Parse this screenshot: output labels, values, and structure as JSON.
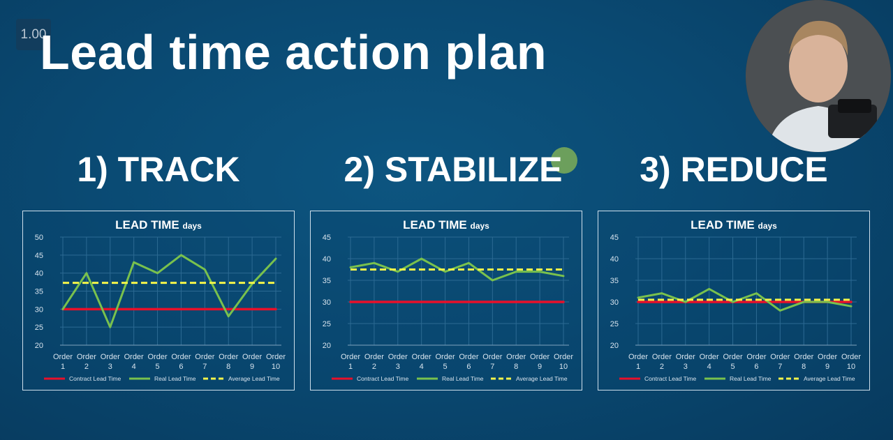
{
  "playback": {
    "speed": "1.00"
  },
  "title": "Lead time action plan",
  "steps": [
    {
      "heading": "1) TRACK"
    },
    {
      "heading": "2) STABILIZE"
    },
    {
      "heading": "3) REDUCE"
    }
  ],
  "colors": {
    "contract": "#e8102a",
    "real": "#79c14d",
    "average": "#f4f44a",
    "grid": "#2c6a93",
    "axis_text": "#d8e4ee"
  },
  "chart_data": [
    {
      "type": "line",
      "title": "LEAD TIME",
      "title_unit": "days",
      "categories": [
        "Order 1",
        "Order 2",
        "Order 3",
        "Order 4",
        "Order 5",
        "Order 6",
        "Order 7",
        "Order 8",
        "Order 9",
        "Order 10"
      ],
      "ylim": [
        20,
        50
      ],
      "yticks": [
        20,
        25,
        30,
        35,
        40,
        45,
        50
      ],
      "grid": true,
      "legend_position": "bottom",
      "series": [
        {
          "name": "Contract Lead Time",
          "values": [
            30,
            30,
            30,
            30,
            30,
            30,
            30,
            30,
            30,
            30
          ],
          "style": "solid"
        },
        {
          "name": "Real Lead Time",
          "values": [
            30,
            40,
            25,
            43,
            40,
            45,
            41,
            28,
            37,
            44
          ],
          "style": "solid"
        },
        {
          "name": "Average Lead Time",
          "values": [
            37.3,
            37.3,
            37.3,
            37.3,
            37.3,
            37.3,
            37.3,
            37.3,
            37.3,
            37.3
          ],
          "style": "dashed"
        }
      ]
    },
    {
      "type": "line",
      "title": "LEAD TIME",
      "title_unit": "days",
      "categories": [
        "Order 1",
        "Order 2",
        "Order 3",
        "Order 4",
        "Order 5",
        "Order 6",
        "Order 7",
        "Order 8",
        "Order 9",
        "Order 10"
      ],
      "ylim": [
        20,
        45
      ],
      "yticks": [
        20,
        25,
        30,
        35,
        40,
        45
      ],
      "grid": true,
      "legend_position": "bottom",
      "series": [
        {
          "name": "Contract Lead Time",
          "values": [
            30,
            30,
            30,
            30,
            30,
            30,
            30,
            30,
            30,
            30
          ],
          "style": "solid"
        },
        {
          "name": "Real Lead Time",
          "values": [
            38,
            39,
            37,
            40,
            37,
            39,
            35,
            37,
            37,
            36
          ],
          "style": "solid"
        },
        {
          "name": "Average Lead Time",
          "values": [
            37.5,
            37.5,
            37.5,
            37.5,
            37.5,
            37.5,
            37.5,
            37.5,
            37.5,
            37.5
          ],
          "style": "dashed"
        }
      ]
    },
    {
      "type": "line",
      "title": "LEAD TIME",
      "title_unit": "days",
      "categories": [
        "Order 1",
        "Order 2",
        "Order 3",
        "Order 4",
        "Order 5",
        "Order 6",
        "Order 7",
        "Order 8",
        "Order 9",
        "Order 10"
      ],
      "ylim": [
        20,
        45
      ],
      "yticks": [
        20,
        25,
        30,
        35,
        40,
        45
      ],
      "grid": true,
      "legend_position": "bottom",
      "series": [
        {
          "name": "Contract Lead Time",
          "values": [
            30,
            30,
            30,
            30,
            30,
            30,
            30,
            30,
            30,
            30
          ],
          "style": "solid"
        },
        {
          "name": "Real Lead Time",
          "values": [
            31,
            32,
            30,
            33,
            30,
            32,
            28,
            30,
            30,
            29
          ],
          "style": "solid"
        },
        {
          "name": "Average Lead Time",
          "values": [
            30.5,
            30.5,
            30.5,
            30.5,
            30.5,
            30.5,
            30.5,
            30.5,
            30.5,
            30.5
          ],
          "style": "dashed"
        }
      ]
    }
  ]
}
